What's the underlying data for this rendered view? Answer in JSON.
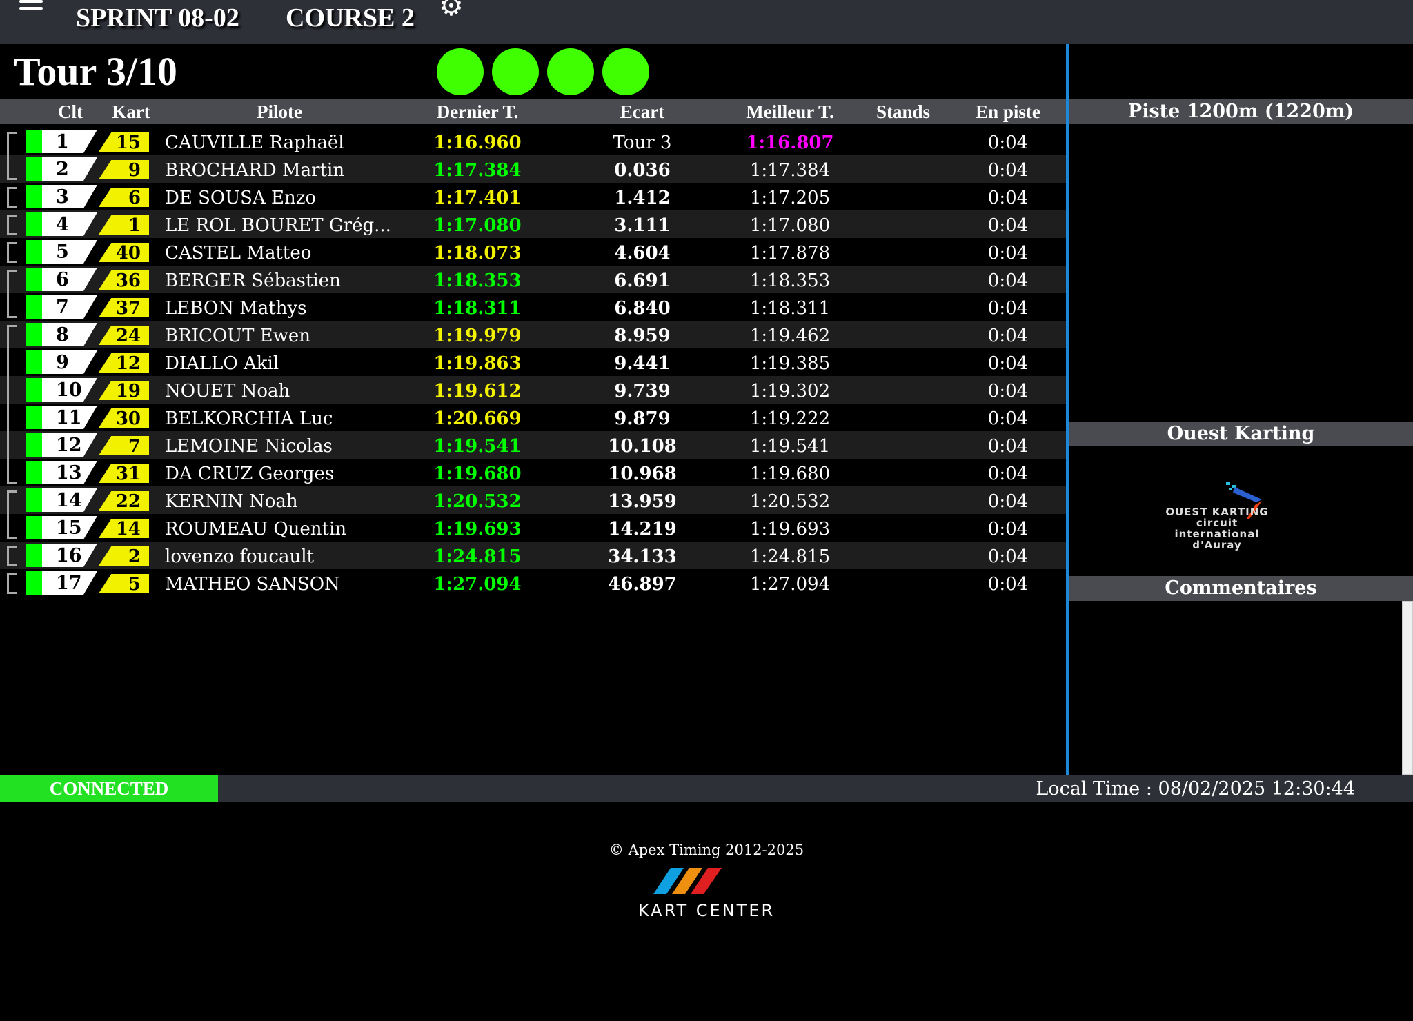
{
  "header": {
    "menu_icon": "hamburger-icon",
    "event": "SPRINT 08-02",
    "session": "COURSE 2",
    "settings_icon": "gear-icon"
  },
  "race": {
    "lap": "Tour 3/10",
    "lights": 4,
    "light_color": "#40ff00"
  },
  "columns": {
    "clt": "Clt",
    "kart": "Kart",
    "pilote": "Pilote",
    "dernier": "Dernier T.",
    "ecart": "Ecart",
    "meilleur": "Meilleur T.",
    "stands": "Stands",
    "en_piste": "En piste"
  },
  "rows": [
    {
      "pos": "1",
      "kart": "15",
      "pilote": "CAUVILLE Raphaël",
      "dernier": "1:16.960",
      "dernier_color": "#f2f200",
      "ecart": "Tour 3",
      "ecart_bold": false,
      "meilleur": "1:16.807",
      "meilleur_color": "#ff00ff",
      "stands": "",
      "en_piste": "0:04"
    },
    {
      "pos": "2",
      "kart": "9",
      "pilote": "BROCHARD Martin",
      "dernier": "1:17.384",
      "dernier_color": "#00ff00",
      "ecart": "0.036",
      "ecart_bold": true,
      "meilleur": "1:17.384",
      "stands": "",
      "en_piste": "0:04"
    },
    {
      "pos": "3",
      "kart": "6",
      "pilote": "DE SOUSA Enzo",
      "dernier": "1:17.401",
      "dernier_color": "#f2f200",
      "ecart": "1.412",
      "ecart_bold": true,
      "meilleur": "1:17.205",
      "stands": "",
      "en_piste": "0:04"
    },
    {
      "pos": "4",
      "kart": "1",
      "pilote": "LE ROL BOURET Grég...",
      "dernier": "1:17.080",
      "dernier_color": "#00ff00",
      "ecart": "3.111",
      "ecart_bold": true,
      "meilleur": "1:17.080",
      "stands": "",
      "en_piste": "0:04"
    },
    {
      "pos": "5",
      "kart": "40",
      "pilote": "CASTEL Matteo",
      "dernier": "1:18.073",
      "dernier_color": "#f2f200",
      "ecart": "4.604",
      "ecart_bold": true,
      "meilleur": "1:17.878",
      "stands": "",
      "en_piste": "0:04"
    },
    {
      "pos": "6",
      "kart": "36",
      "pilote": "BERGER Sébastien",
      "dernier": "1:18.353",
      "dernier_color": "#00ff00",
      "ecart": "6.691",
      "ecart_bold": true,
      "meilleur": "1:18.353",
      "stands": "",
      "en_piste": "0:04"
    },
    {
      "pos": "7",
      "kart": "37",
      "pilote": "LEBON Mathys",
      "dernier": "1:18.311",
      "dernier_color": "#00ff00",
      "ecart": "6.840",
      "ecart_bold": true,
      "meilleur": "1:18.311",
      "stands": "",
      "en_piste": "0:04"
    },
    {
      "pos": "8",
      "kart": "24",
      "pilote": "BRICOUT Ewen",
      "dernier": "1:19.979",
      "dernier_color": "#f2f200",
      "ecart": "8.959",
      "ecart_bold": true,
      "meilleur": "1:19.462",
      "stands": "",
      "en_piste": "0:04"
    },
    {
      "pos": "9",
      "kart": "12",
      "pilote": "DIALLO Akil",
      "dernier": "1:19.863",
      "dernier_color": "#f2f200",
      "ecart": "9.441",
      "ecart_bold": true,
      "meilleur": "1:19.385",
      "stands": "",
      "en_piste": "0:04"
    },
    {
      "pos": "10",
      "kart": "19",
      "pilote": "NOUET Noah",
      "dernier": "1:19.612",
      "dernier_color": "#f2f200",
      "ecart": "9.739",
      "ecart_bold": true,
      "meilleur": "1:19.302",
      "stands": "",
      "en_piste": "0:04"
    },
    {
      "pos": "11",
      "kart": "30",
      "pilote": "BELKORCHIA Luc",
      "dernier": "1:20.669",
      "dernier_color": "#f2f200",
      "ecart": "9.879",
      "ecart_bold": true,
      "meilleur": "1:19.222",
      "stands": "",
      "en_piste": "0:04"
    },
    {
      "pos": "12",
      "kart": "7",
      "pilote": "LEMOINE Nicolas",
      "dernier": "1:19.541",
      "dernier_color": "#00ff00",
      "ecart": "10.108",
      "ecart_bold": true,
      "meilleur": "1:19.541",
      "stands": "",
      "en_piste": "0:04"
    },
    {
      "pos": "13",
      "kart": "31",
      "pilote": "DA CRUZ Georges",
      "dernier": "1:19.680",
      "dernier_color": "#00ff00",
      "ecart": "10.968",
      "ecart_bold": true,
      "meilleur": "1:19.680",
      "stands": "",
      "en_piste": "0:04"
    },
    {
      "pos": "14",
      "kart": "22",
      "pilote": "KERNIN Noah",
      "dernier": "1:20.532",
      "dernier_color": "#00ff00",
      "ecart": "13.959",
      "ecart_bold": true,
      "meilleur": "1:20.532",
      "stands": "",
      "en_piste": "0:04"
    },
    {
      "pos": "15",
      "kart": "14",
      "pilote": "ROUMEAU Quentin",
      "dernier": "1:19.693",
      "dernier_color": "#00ff00",
      "ecart": "14.219",
      "ecart_bold": true,
      "meilleur": "1:19.693",
      "stands": "",
      "en_piste": "0:04"
    },
    {
      "pos": "16",
      "kart": "2",
      "pilote": "lovenzo foucault",
      "dernier": "1:24.815",
      "dernier_color": "#00ff00",
      "ecart": "34.133",
      "ecart_bold": true,
      "meilleur": "1:24.815",
      "stands": "",
      "en_piste": "0:04"
    },
    {
      "pos": "17",
      "kart": "5",
      "pilote": "MATHEO SANSON",
      "dernier": "1:27.094",
      "dernier_color": "#00ff00",
      "ecart": "46.897",
      "ecart_bold": true,
      "meilleur": "1:27.094",
      "stands": "",
      "en_piste": "0:04"
    }
  ],
  "groups": [
    [
      1,
      2
    ],
    [
      3
    ],
    [
      4
    ],
    [
      5
    ],
    [
      6,
      7
    ],
    [
      8,
      13
    ],
    [
      14,
      15
    ],
    [
      16
    ],
    [
      17
    ]
  ],
  "right": {
    "track": "Piste 1200m (1220m)",
    "sponsor": "Ouest Karting",
    "sponsor_logo_text": "OUEST KARTING circuit international d'Auray",
    "comments": "Commentaires"
  },
  "status": {
    "connection": "CONNECTED",
    "local_time": "Local Time : 08/02/2025 12:30:44"
  },
  "footer": {
    "copyright": "© Apex Timing 2012-2025",
    "logo_text": "KART CENTER"
  }
}
